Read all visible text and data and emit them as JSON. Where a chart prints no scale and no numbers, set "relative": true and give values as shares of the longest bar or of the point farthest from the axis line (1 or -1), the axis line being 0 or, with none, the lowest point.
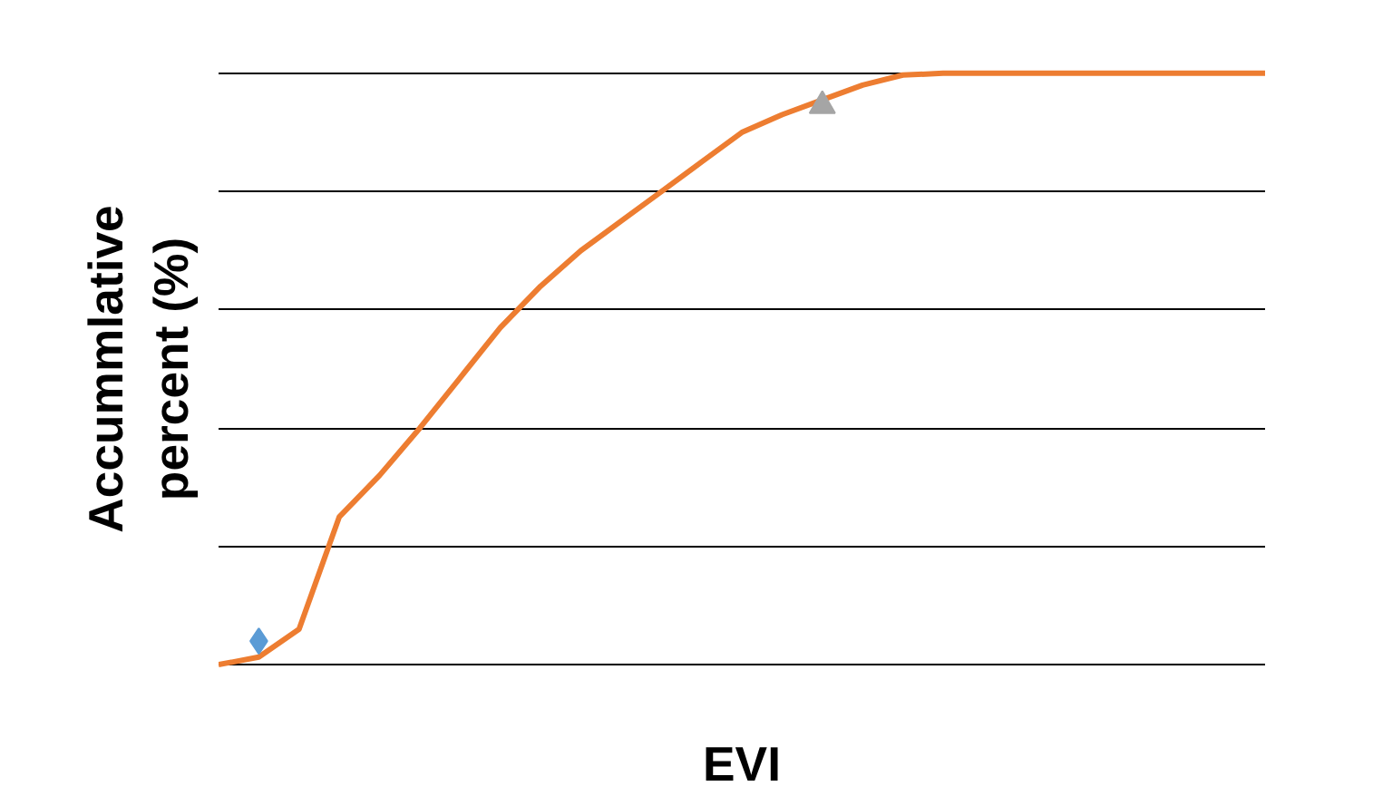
{
  "chart_data": {
    "type": "line",
    "xlabel": "EVI",
    "ylabel": "Accummlative percent (%)",
    "relative": true,
    "grid": "y",
    "categories": [
      null,
      null,
      null,
      null,
      null,
      null,
      null,
      null,
      null,
      null,
      null,
      null,
      null,
      null,
      null,
      null,
      null,
      null,
      null,
      null,
      null,
      null,
      null,
      null,
      null,
      null,
      null
    ],
    "series": [
      {
        "color": "#ed7d31",
        "marker": "none",
        "values": [
          0,
          0.013,
          0.06,
          0.25,
          0.32,
          0.4,
          0.485,
          0.57,
          0.64,
          0.7,
          0.75,
          0.8,
          0.85,
          0.9,
          0.93,
          0.955,
          0.98,
          0.997,
          1,
          1,
          1,
          1,
          1,
          1,
          1,
          1,
          1
        ]
      },
      {
        "type": "line",
        "color": "#5b9bd5",
        "marker": "diamond",
        "values": [
          null,
          0.04,
          null,
          null,
          null,
          null,
          null,
          null,
          null,
          null,
          null,
          null,
          null,
          null,
          null,
          null,
          null,
          null,
          null,
          null,
          null,
          null,
          null,
          null,
          null,
          null,
          null
        ]
      },
      {
        "type": "line",
        "color": "#a5a5a5",
        "marker": "triangle",
        "values": [
          null,
          null,
          null,
          null,
          null,
          null,
          null,
          null,
          null,
          null,
          null,
          null,
          null,
          null,
          null,
          0.945,
          null,
          null,
          null,
          null,
          null,
          null,
          null,
          null,
          null,
          null,
          null
        ]
      }
    ]
  }
}
